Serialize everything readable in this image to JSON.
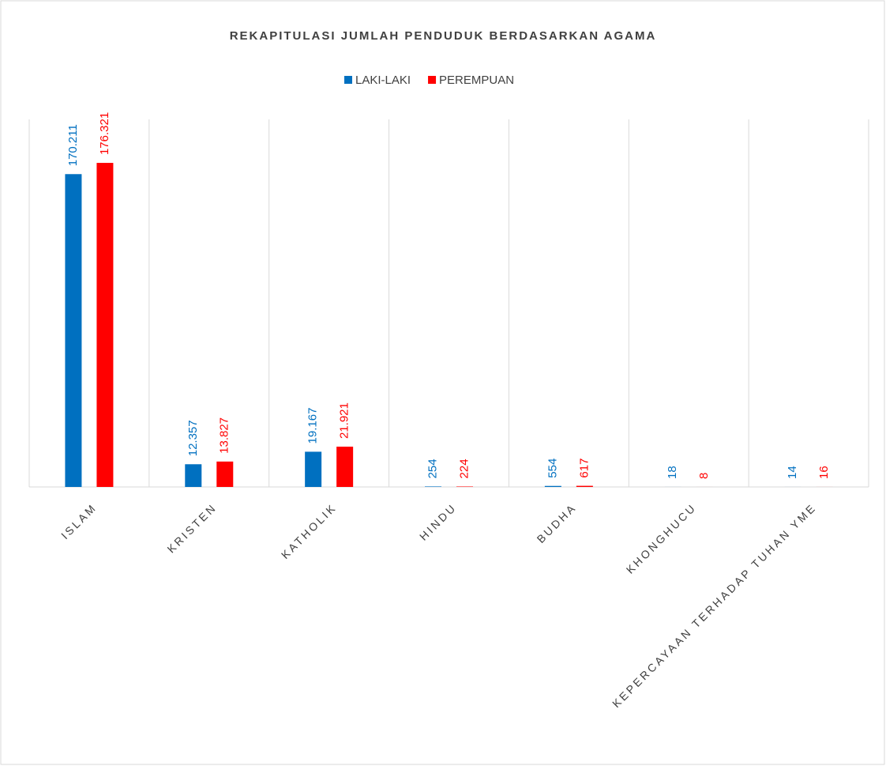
{
  "chart_data": {
    "type": "bar",
    "title": "REKAPITULASI JUMLAH PENDUDUK BERDASARKAN AGAMA",
    "categories": [
      "ISLAM",
      "KRISTEN",
      "KATHOLIK",
      "HINDU",
      "BUDHA",
      "KHONGHUCU",
      "KEPERCAYAAN TERHADAP TUHAN YME"
    ],
    "series": [
      {
        "name": "LAKI-LAKI",
        "color": "#0070c0",
        "values": [
          170211,
          12357,
          19167,
          254,
          554,
          18,
          14
        ],
        "value_labels": [
          "170.211",
          "12.357",
          "19.167",
          "254",
          "554",
          "18",
          "14"
        ]
      },
      {
        "name": "PEREMPUAN",
        "color": "#ff0000",
        "values": [
          176321,
          13827,
          21921,
          224,
          617,
          8,
          16
        ],
        "value_labels": [
          "176.321",
          "13.827",
          "21.921",
          "224",
          "617",
          "8",
          "16"
        ]
      }
    ],
    "ylim": [
      0,
      200000
    ],
    "legend": "top"
  }
}
